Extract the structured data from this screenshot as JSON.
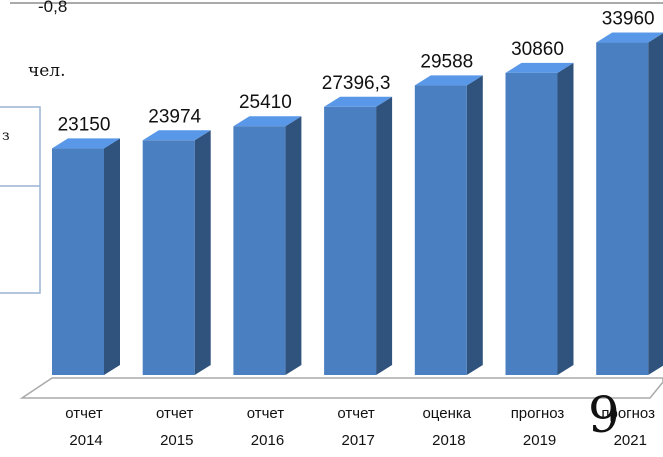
{
  "chart_data": {
    "type": "bar3d",
    "categories": [
      "отчет 2014",
      "отчет 2015",
      "отчет 2016",
      "отчет 2017",
      "оценка 2018",
      "прогноз 2019",
      "прогноз 2021"
    ],
    "values": [
      23150,
      23974,
      25410,
      27396.3,
      29588,
      30860,
      33960
    ],
    "value_labels": [
      "23150",
      "23974",
      "25410",
      "27396,3",
      "29588",
      "30860",
      "33960"
    ],
    "color": "#4a7fc1",
    "ylim": [
      0,
      38000
    ]
  },
  "fragments": {
    "top_left": "-0,8",
    "left_text": "чел.",
    "box_text": "з",
    "page_number": "9"
  }
}
